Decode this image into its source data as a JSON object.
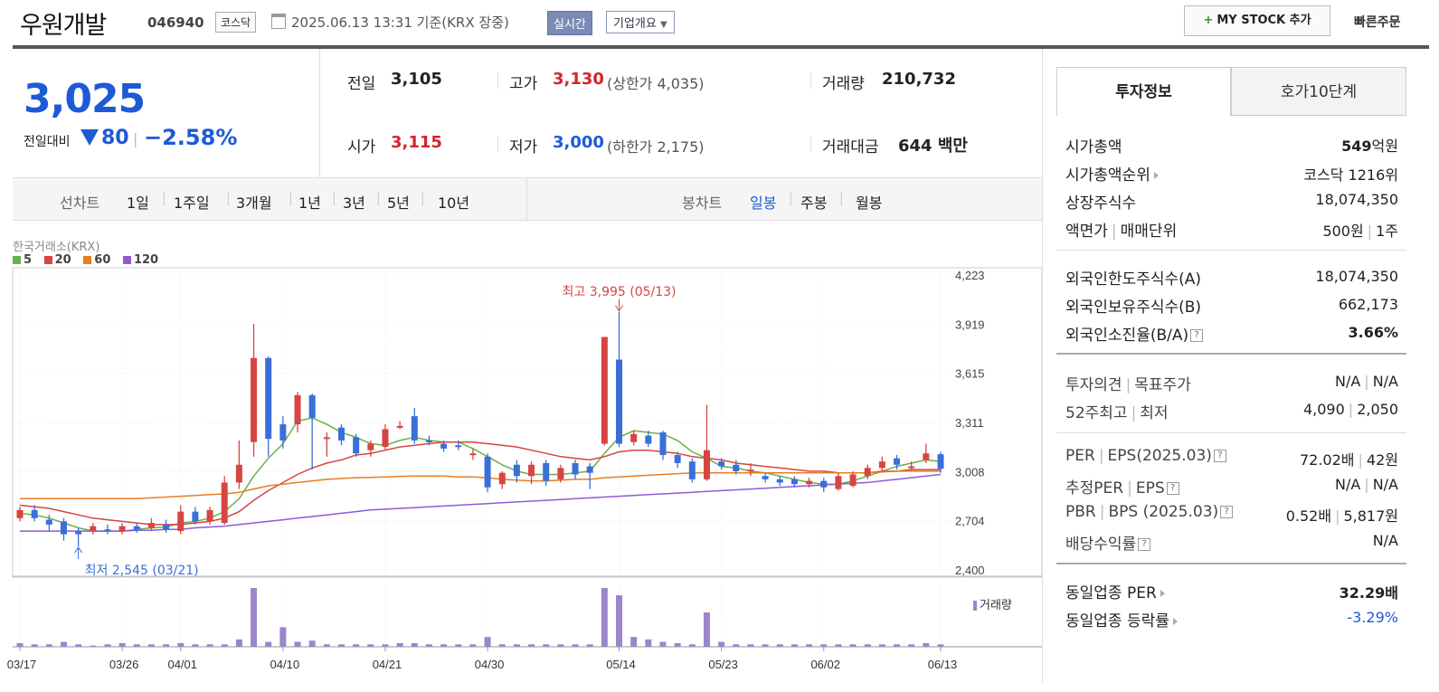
{
  "header": {
    "title": "우원개발",
    "code": "046940",
    "market": "코스닥",
    "datetime": "2025.06.13 13:31 기준(KRX 장중)",
    "realtime": "실시간",
    "corp_info": "기업개요",
    "mystock_plus": "+",
    "mystock_label": "MY STOCK 추가",
    "quick_order": "빠른주문"
  },
  "price": {
    "current": "3,025",
    "change_label": "전일대비",
    "change_value": "80",
    "change_sep": "|",
    "change_pct": "−2.58%"
  },
  "quote": {
    "prev_label": "전일",
    "prev_value": "3,105",
    "high_label": "고가",
    "high_value": "3,130",
    "upper_limit": "(상한가 4,035)",
    "volume_label": "거래량",
    "volume_value": "210,732",
    "open_label": "시가",
    "open_value": "3,115",
    "low_label": "저가",
    "low_value": "3,000",
    "lower_limit": "(하한가 2,175)",
    "amount_label": "거래대금",
    "amount_value": "644 백만"
  },
  "periods": {
    "line_label": "선차트",
    "items": [
      "1일",
      "1주일",
      "3개월",
      "1년",
      "3년",
      "5년",
      "10년"
    ],
    "candle_label": "봉차트",
    "candle_items": [
      "일봉",
      "주봉",
      "월봉"
    ],
    "active_candle": "일봉"
  },
  "chart_legend": {
    "source": "한국거래소(KRX)",
    "ma": [
      "5",
      "20",
      "60",
      "120"
    ],
    "ma_colors": [
      "#6ab04c",
      "#d64541",
      "#e67e22",
      "#8e5bd6"
    ],
    "volume_label": "거래량"
  },
  "chart_data": {
    "type": "candlestick",
    "y_ticks": [
      "4,223",
      "3,919",
      "3,615",
      "3,311",
      "3,008",
      "2,704",
      "2,400"
    ],
    "ylim": [
      2400,
      4223
    ],
    "x_ticks": [
      "03/17",
      "03/26",
      "04/01",
      "04/10",
      "04/21",
      "04/30",
      "05/14",
      "05/23",
      "06/02",
      "06/13"
    ],
    "high_annotation": "최고 3,995 (05/13)",
    "low_annotation": "최저 2,545 (03/21)",
    "candles": [
      {
        "o": 2720,
        "c": 2770,
        "h": 2790,
        "l": 2700
      },
      {
        "o": 2770,
        "c": 2720,
        "h": 2800,
        "l": 2700
      },
      {
        "o": 2710,
        "c": 2680,
        "h": 2740,
        "l": 2640
      },
      {
        "o": 2700,
        "c": 2620,
        "h": 2720,
        "l": 2580
      },
      {
        "o": 2640,
        "c": 2620,
        "h": 2660,
        "l": 2545
      },
      {
        "o": 2640,
        "c": 2670,
        "h": 2690,
        "l": 2620
      },
      {
        "o": 2650,
        "c": 2640,
        "h": 2680,
        "l": 2620
      },
      {
        "o": 2640,
        "c": 2670,
        "h": 2690,
        "l": 2620
      },
      {
        "o": 2670,
        "c": 2650,
        "h": 2690,
        "l": 2630
      },
      {
        "o": 2660,
        "c": 2690,
        "h": 2720,
        "l": 2640
      },
      {
        "o": 2680,
        "c": 2650,
        "h": 2710,
        "l": 2630
      },
      {
        "o": 2640,
        "c": 2760,
        "h": 2800,
        "l": 2620
      },
      {
        "o": 2760,
        "c": 2700,
        "h": 2790,
        "l": 2680
      },
      {
        "o": 2700,
        "c": 2770,
        "h": 2790,
        "l": 2680
      },
      {
        "o": 2690,
        "c": 2940,
        "h": 2980,
        "l": 2680
      },
      {
        "o": 2940,
        "c": 3050,
        "h": 3200,
        "l": 2900
      },
      {
        "o": 3190,
        "c": 3710,
        "h": 3920,
        "l": 3100
      },
      {
        "o": 3710,
        "c": 3210,
        "h": 3720,
        "l": 3100
      },
      {
        "o": 3300,
        "c": 3200,
        "h": 3350,
        "l": 3150
      },
      {
        "o": 3300,
        "c": 3480,
        "h": 3500,
        "l": 3250
      },
      {
        "o": 3480,
        "c": 3340,
        "h": 3490,
        "l": 3020
      },
      {
        "o": 3220,
        "c": 3220,
        "h": 3250,
        "l": 3100
      },
      {
        "o": 3280,
        "c": 3200,
        "h": 3300,
        "l": 3170
      },
      {
        "o": 3220,
        "c": 3120,
        "h": 3240,
        "l": 3100
      },
      {
        "o": 3140,
        "c": 3180,
        "h": 3200,
        "l": 3100
      },
      {
        "o": 3160,
        "c": 3270,
        "h": 3300,
        "l": 3140
      },
      {
        "o": 3290,
        "c": 3290,
        "h": 3320,
        "l": 3270
      },
      {
        "o": 3350,
        "c": 3200,
        "h": 3400,
        "l": 3180
      },
      {
        "o": 3200,
        "c": 3190,
        "h": 3230,
        "l": 3170
      },
      {
        "o": 3180,
        "c": 3150,
        "h": 3200,
        "l": 3130
      },
      {
        "o": 3170,
        "c": 3160,
        "h": 3200,
        "l": 3140
      },
      {
        "o": 3110,
        "c": 3120,
        "h": 3150,
        "l": 3080
      },
      {
        "o": 3100,
        "c": 2910,
        "h": 3120,
        "l": 2880
      },
      {
        "o": 2930,
        "c": 3000,
        "h": 3010,
        "l": 2900
      },
      {
        "o": 3050,
        "c": 2980,
        "h": 3080,
        "l": 2940
      },
      {
        "o": 2980,
        "c": 3050,
        "h": 3070,
        "l": 2930
      },
      {
        "o": 3060,
        "c": 2950,
        "h": 3080,
        "l": 2920
      },
      {
        "o": 2960,
        "c": 3030,
        "h": 3050,
        "l": 2940
      },
      {
        "o": 3060,
        "c": 2990,
        "h": 3080,
        "l": 2960
      },
      {
        "o": 3040,
        "c": 3000,
        "h": 3060,
        "l": 2900
      },
      {
        "o": 3180,
        "c": 3840,
        "h": 3840,
        "l": 3170
      },
      {
        "o": 3700,
        "c": 3180,
        "h": 3995,
        "l": 3160
      },
      {
        "o": 3190,
        "c": 3240,
        "h": 3260,
        "l": 3170
      },
      {
        "o": 3230,
        "c": 3180,
        "h": 3260,
        "l": 3160
      },
      {
        "o": 3250,
        "c": 3110,
        "h": 3260,
        "l": 3080
      },
      {
        "o": 3110,
        "c": 3060,
        "h": 3130,
        "l": 3030
      },
      {
        "o": 3070,
        "c": 2960,
        "h": 3090,
        "l": 2940
      },
      {
        "o": 2960,
        "c": 3140,
        "h": 3420,
        "l": 2950
      },
      {
        "o": 3070,
        "c": 3040,
        "h": 3090,
        "l": 3020
      },
      {
        "o": 3050,
        "c": 3010,
        "h": 3080,
        "l": 2990
      },
      {
        "o": 3020,
        "c": 3020,
        "h": 3060,
        "l": 2980
      },
      {
        "o": 2980,
        "c": 2960,
        "h": 3000,
        "l": 2940
      },
      {
        "o": 2960,
        "c": 2940,
        "h": 2980,
        "l": 2920
      },
      {
        "o": 2960,
        "c": 2930,
        "h": 2980,
        "l": 2910
      },
      {
        "o": 2930,
        "c": 2950,
        "h": 2970,
        "l": 2910
      },
      {
        "o": 2950,
        "c": 2910,
        "h": 2970,
        "l": 2880
      },
      {
        "o": 2900,
        "c": 2980,
        "h": 3000,
        "l": 2890
      },
      {
        "o": 2920,
        "c": 2990,
        "h": 3010,
        "l": 2910
      },
      {
        "o": 2980,
        "c": 3030,
        "h": 3050,
        "l": 2960
      },
      {
        "o": 3030,
        "c": 3070,
        "h": 3100,
        "l": 3010
      },
      {
        "o": 3090,
        "c": 3050,
        "h": 3110,
        "l": 3020
      },
      {
        "o": 3040,
        "c": 3040,
        "h": 3070,
        "l": 3020
      },
      {
        "o": 3080,
        "c": 3120,
        "h": 3180,
        "l": 3060
      },
      {
        "o": 3115,
        "c": 3025,
        "h": 3130,
        "l": 3000
      }
    ],
    "ma5": [
      2750,
      2740,
      2720,
      2690,
      2660,
      2640,
      2640,
      2640,
      2650,
      2660,
      2665,
      2690,
      2700,
      2720,
      2760,
      2840,
      2980,
      3090,
      3180,
      3320,
      3340,
      3300,
      3250,
      3220,
      3180,
      3170,
      3200,
      3220,
      3200,
      3190,
      3190,
      3150,
      3100,
      3050,
      3010,
      2990,
      2990,
      2990,
      3000,
      3010,
      3120,
      3220,
      3260,
      3250,
      3240,
      3200,
      3130,
      3090,
      3040,
      3030,
      3010,
      3000,
      2980,
      2960,
      2940,
      2930,
      2930,
      2950,
      2980,
      3010,
      3040,
      3060,
      3080,
      3070
    ],
    "ma20": [
      2800,
      2790,
      2780,
      2760,
      2740,
      2720,
      2710,
      2700,
      2690,
      2680,
      2680,
      2680,
      2690,
      2700,
      2720,
      2760,
      2830,
      2890,
      2940,
      2990,
      3030,
      3060,
      3080,
      3110,
      3120,
      3140,
      3160,
      3170,
      3180,
      3190,
      3190,
      3190,
      3180,
      3170,
      3160,
      3140,
      3120,
      3100,
      3090,
      3080,
      3100,
      3130,
      3140,
      3140,
      3130,
      3120,
      3100,
      3090,
      3080,
      3060,
      3050,
      3040,
      3030,
      3020,
      3010,
      3010,
      3000,
      3000,
      3000,
      3010,
      3010,
      3020,
      3020,
      3020
    ],
    "ma60": [
      2840,
      2840,
      2840,
      2840,
      2840,
      2840,
      2840,
      2840,
      2840,
      2845,
      2850,
      2855,
      2860,
      2865,
      2870,
      2880,
      2900,
      2920,
      2930,
      2940,
      2950,
      2960,
      2965,
      2970,
      2972,
      2975,
      2978,
      2980,
      2980,
      2980,
      2975,
      2975,
      2970,
      2960,
      2955,
      2950,
      2950,
      2955,
      2960,
      2960,
      2970,
      2975,
      2980,
      2985,
      2990,
      2995,
      3000,
      3000,
      3000,
      3000,
      3000,
      3000,
      3000,
      3000,
      3000,
      3000,
      3000,
      3000,
      3000,
      3005,
      3010,
      3010,
      3010,
      3010
    ],
    "ma120": [
      2640,
      2640,
      2640,
      2640,
      2640,
      2640,
      2640,
      2640,
      2645,
      2645,
      2650,
      2650,
      2660,
      2665,
      2670,
      2680,
      2690,
      2700,
      2710,
      2720,
      2730,
      2740,
      2750,
      2760,
      2770,
      2775,
      2780,
      2785,
      2790,
      2795,
      2800,
      2805,
      2810,
      2815,
      2820,
      2825,
      2830,
      2835,
      2840,
      2845,
      2850,
      2855,
      2860,
      2865,
      2870,
      2875,
      2880,
      2885,
      2890,
      2895,
      2900,
      2905,
      2910,
      2915,
      2920,
      2925,
      2930,
      2935,
      2940,
      2950,
      2960,
      2970,
      2980,
      2990
    ],
    "volumes": [
      3,
      2,
      2,
      4,
      2,
      1,
      2,
      3,
      2,
      2,
      2,
      3,
      2,
      2,
      2,
      6,
      48,
      4,
      16,
      4,
      5,
      2,
      2,
      2,
      2,
      2,
      3,
      3,
      2,
      2,
      2,
      2,
      8,
      2,
      2,
      2,
      2,
      2,
      2,
      2,
      48,
      42,
      8,
      6,
      4,
      3,
      2,
      28,
      4,
      2,
      2,
      2,
      2,
      2,
      2,
      2,
      2,
      2,
      2,
      2,
      2,
      2,
      3,
      2
    ]
  },
  "right_panel": {
    "tab_invest": "투자정보",
    "tab_orderbook": "호가10단계",
    "market_cap_label": "시가총액",
    "market_cap_value": "549",
    "market_cap_unit": "억원",
    "rank_label": "시가총액순위",
    "rank_value": "코스닥 1216위",
    "shares_label": "상장주식수",
    "shares_value": "18,074,350",
    "par_label": "액면가",
    "trade_unit_label": "매매단위",
    "par_value": "500원",
    "trade_unit_value": "1주",
    "foreign_limit_label": "외국인한도주식수(A)",
    "foreign_limit_value": "18,074,350",
    "foreign_hold_label": "외국인보유주식수(B)",
    "foreign_hold_value": "662,173",
    "foreign_ratio_label": "외국인소진율(B/A)",
    "foreign_ratio_value": "3.66%",
    "opinion_label": "투자의견",
    "target_label": "목표주가",
    "opinion_value": "N/A",
    "target_value": "N/A",
    "w52_label": "52주최고",
    "w52_low_label": "최저",
    "w52_high": "4,090",
    "w52_low": "2,050",
    "per_label": "PER",
    "eps_label": "EPS(2025.03)",
    "per_value": "72.02배",
    "eps_value": "42원",
    "est_per_label": "추정PER",
    "est_eps_label": "EPS",
    "est_per_value": "N/A",
    "est_eps_value": "N/A",
    "pbr_label": "PBR",
    "bps_label": "BPS (2025.03)",
    "pbr_value": "0.52배",
    "bps_value": "5,817원",
    "div_label": "배당수익률",
    "div_value": "N/A",
    "sector_per_label": "동일업종 PER",
    "sector_per_value": "32.29배",
    "sector_chg_label": "동일업종 등락률",
    "sector_chg_value": "-3.29%",
    "help_glyph": "?",
    "sep": "|"
  }
}
